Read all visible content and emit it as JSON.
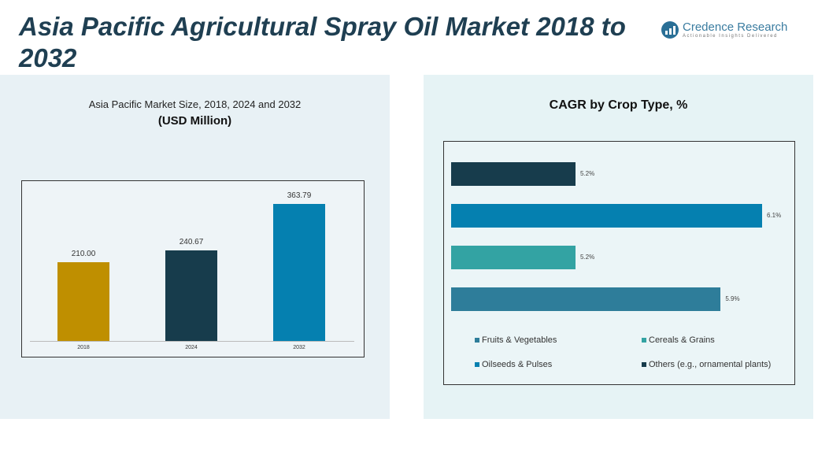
{
  "header": {
    "title": "Asia Pacific Agricultural Spray Oil Market  2018 to 2032",
    "logo_name": "Credence Research",
    "logo_tagline": "Actionable Insights Delivered"
  },
  "chart_data": [
    {
      "type": "bar",
      "title": "Asia Pacific Market Size, 2018, 2024 and 2032",
      "ylabel": "(USD Million)",
      "categories": [
        "2018",
        "2024",
        "2032"
      ],
      "values": [
        210.0,
        240.67,
        363.79
      ],
      "value_labels": [
        "210.00",
        "240.67",
        "363.79"
      ],
      "colors": [
        "#bf8f00",
        "#173c4c",
        "#0580b0"
      ],
      "ylim": [
        0,
        363.79
      ],
      "grid": false
    },
    {
      "type": "bar",
      "orientation": "horizontal",
      "title": "CAGR by Crop Type, %",
      "categories": [
        "Others (e.g., ornamental plants)",
        "Oilseeds & Pulses",
        "Cereals & Grains",
        "Fruits & Vegetables"
      ],
      "values": [
        5.2,
        6.1,
        5.2,
        5.9
      ],
      "value_labels": [
        "5.2%",
        "6.1%",
        "5.2%",
        "5.9%"
      ],
      "colors": [
        "#173c4c",
        "#0580b0",
        "#33a3a3",
        "#2e7d9a"
      ],
      "xlim": [
        4.6,
        6.1
      ],
      "grid": false,
      "legend_position": "bottom",
      "legend": [
        {
          "label": "Fruits & Vegetables",
          "color": "#2e7d9a"
        },
        {
          "label": "Cereals & Grains",
          "color": "#33a3a3"
        },
        {
          "label": "Oilseeds & Pulses",
          "color": "#0580b0"
        },
        {
          "label": "Others (e.g., ornamental plants)",
          "color": "#173c4c"
        }
      ]
    }
  ]
}
